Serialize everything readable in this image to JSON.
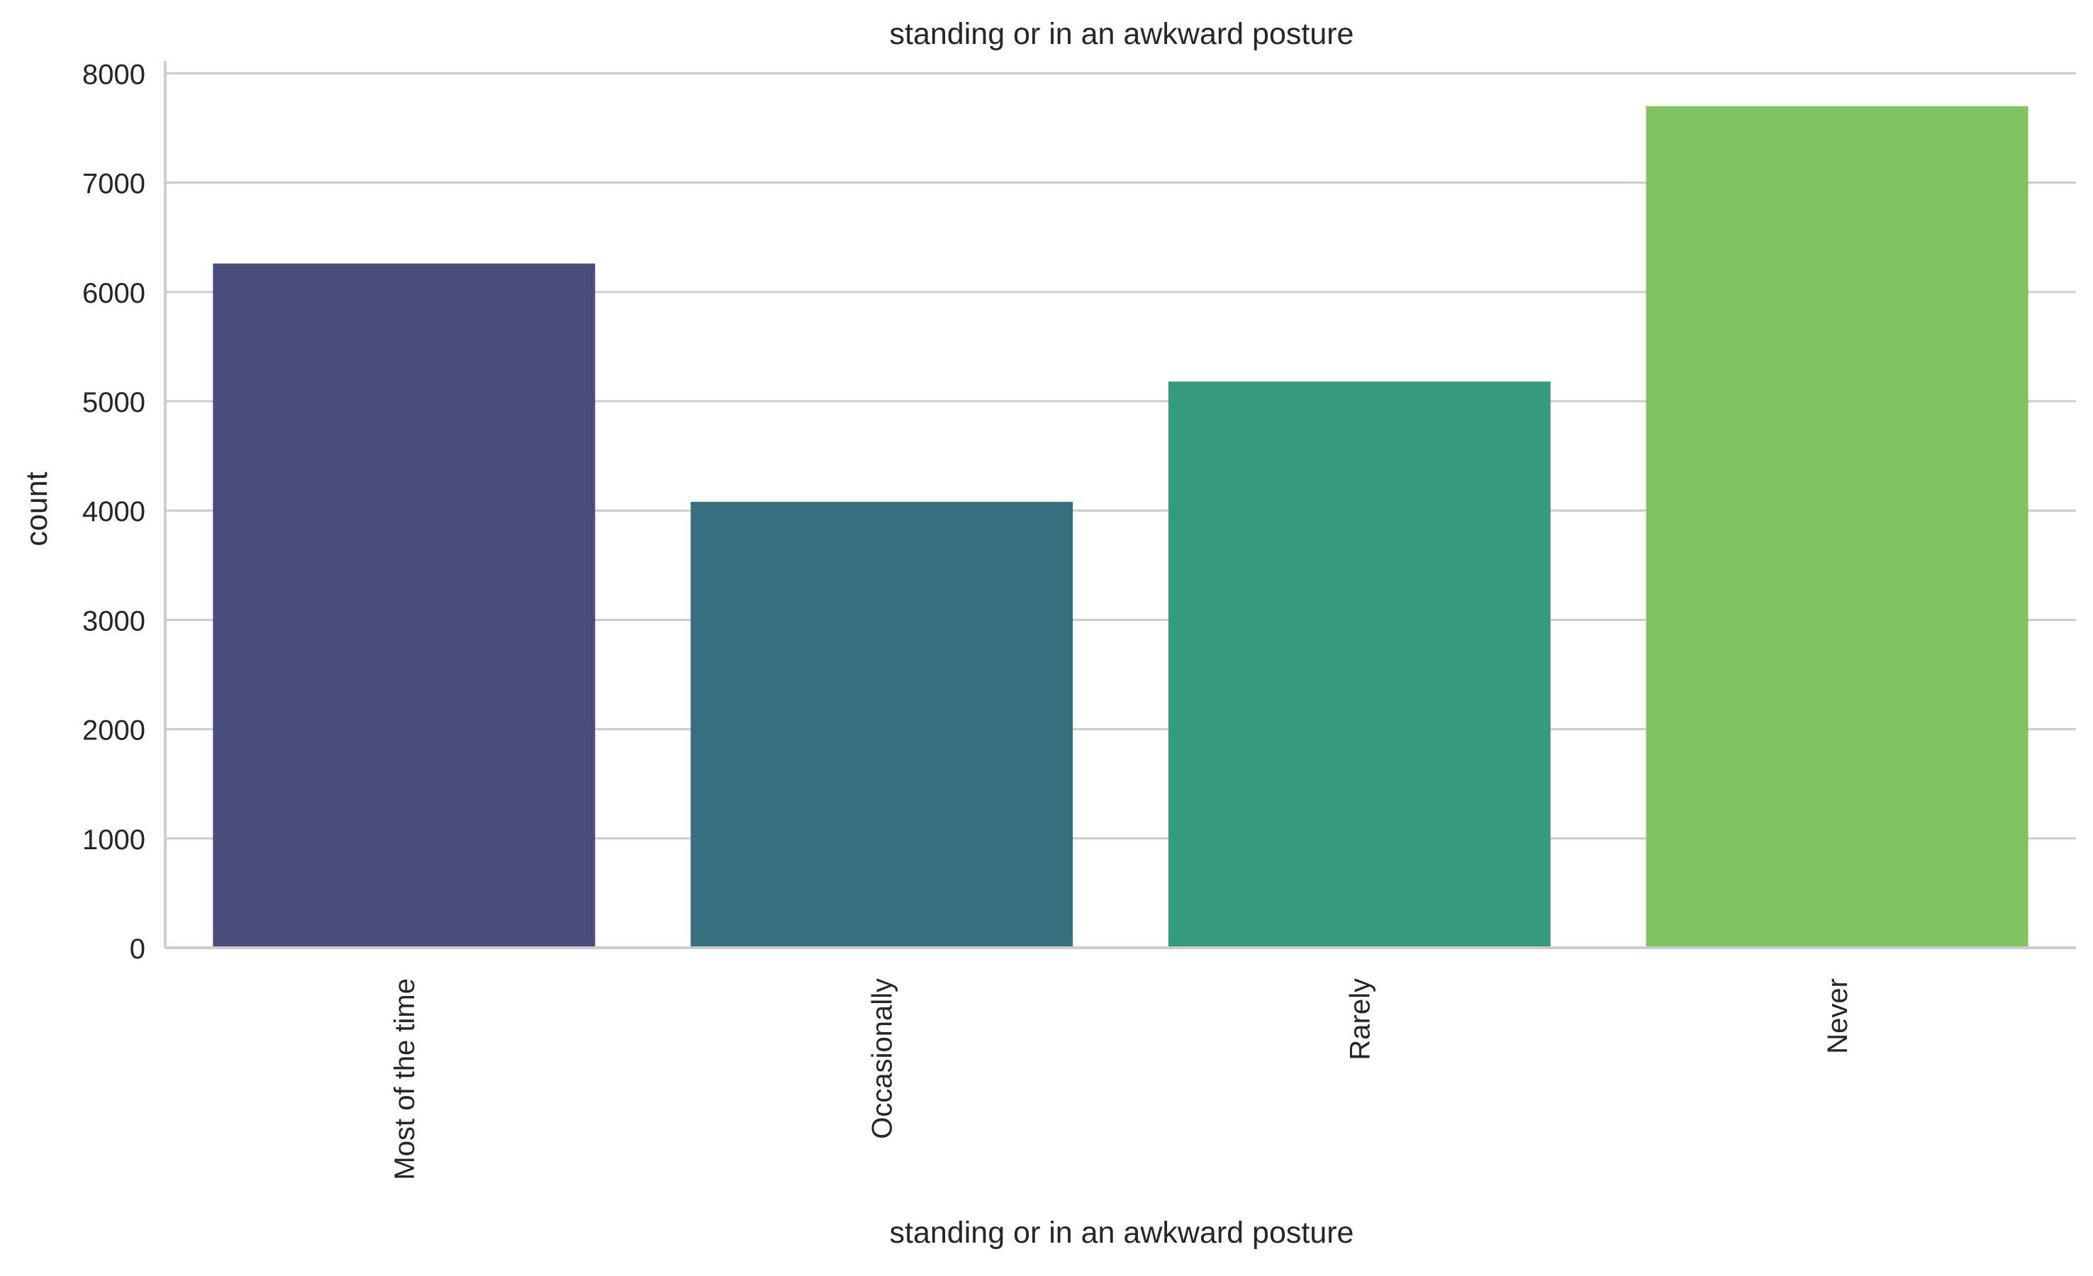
{
  "chart_data": {
    "type": "bar",
    "title": "standing or in an awkward posture",
    "xlabel": "standing or in an awkward posture",
    "ylabel": "count",
    "categories": [
      "Most of the time",
      "Occasionally",
      "Rarely",
      "Never"
    ],
    "values": [
      6260,
      4080,
      5180,
      7700
    ],
    "colors": [
      "#4a4c7c",
      "#377180",
      "#35997b",
      "#81c262"
    ],
    "ylim": [
      0,
      8100
    ],
    "yticks": [
      0,
      1000,
      2000,
      3000,
      4000,
      5000,
      6000,
      7000,
      8000
    ],
    "ytick_labels": [
      "0",
      "1000",
      "2000",
      "3000",
      "4000",
      "5000",
      "6000",
      "7000",
      "8000"
    ],
    "grid": "y",
    "gridColor": "#cccccc",
    "legend": "none"
  }
}
